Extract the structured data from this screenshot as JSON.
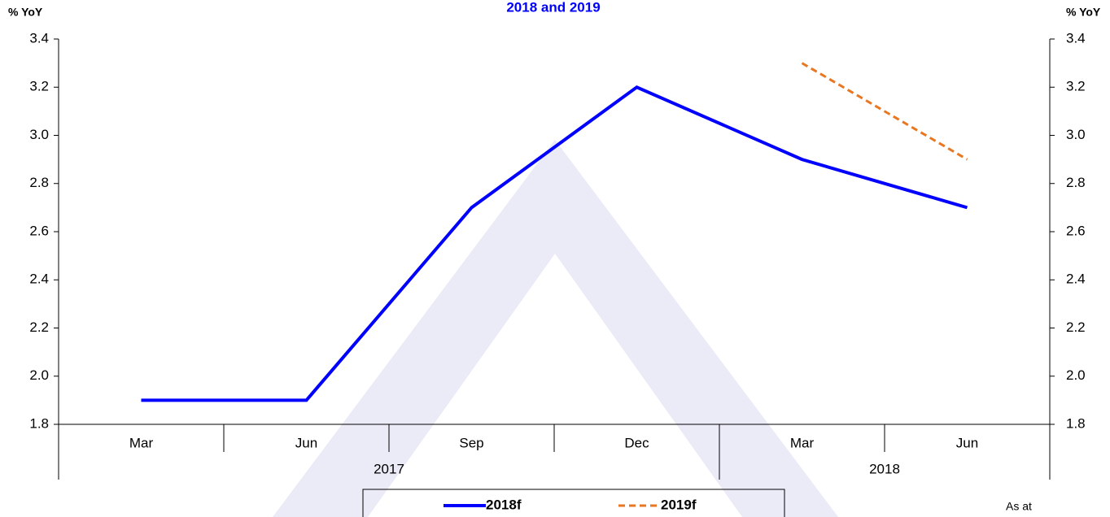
{
  "chart_data": {
    "type": "line",
    "title": "2018 and 2019",
    "y_label": "% YoY",
    "y2_label": "% YoY",
    "categories": [
      "Mar",
      "Jun",
      "Sep",
      "Dec",
      "Mar",
      "Jun"
    ],
    "years": [
      "2017",
      "2017",
      "2017",
      "2017",
      "2018",
      "2018"
    ],
    "series": [
      {
        "name": "2018f",
        "color": "#0000ff",
        "dash": false,
        "values": [
          1.9,
          1.9,
          2.7,
          3.2,
          2.9,
          2.7
        ]
      },
      {
        "name": "2019f",
        "color": "#e87722",
        "dash": true,
        "values": [
          null,
          null,
          null,
          null,
          3.3,
          2.9
        ]
      }
    ],
    "ylim": [
      1.8,
      3.4
    ],
    "yticks": [
      1.8,
      {
        "value": 2,
        "label": "2.0"
      },
      2.2,
      2.4,
      2.6,
      2.8,
      {
        "value": 3,
        "label": "3.0"
      },
      3.2,
      3.4
    ],
    "y2lim": [
      1.8,
      3.4
    ],
    "y2ticks": [
      1.8,
      {
        "value": 2,
        "label": "2.0"
      },
      2.2,
      2.4,
      2.6,
      2.8,
      {
        "value": 3,
        "label": "3.0"
      },
      3.2,
      3.4
    ],
    "note": "As at"
  }
}
